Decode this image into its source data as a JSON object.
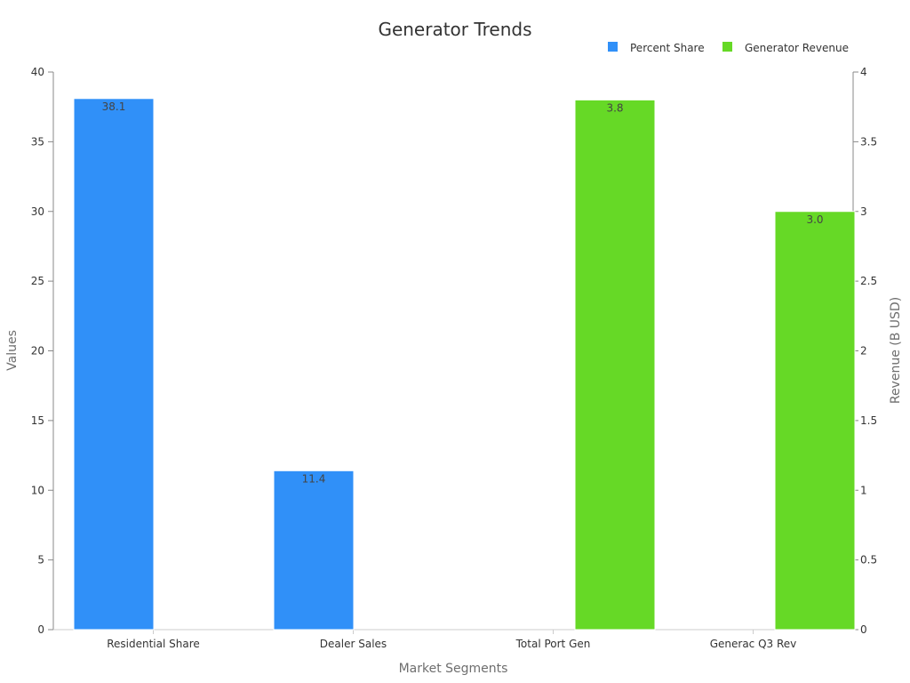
{
  "chart_data": {
    "type": "bar",
    "title": "Generator Trends",
    "xlabel": "Market Segments",
    "ylabel": "Values",
    "y2label": "Revenue (B USD)",
    "categories": [
      "Residential Share",
      "Dealer Sales",
      "Total Port Gen",
      "Generac Q3 Rev"
    ],
    "ylim": [
      0,
      40
    ],
    "y2lim": [
      0,
      4
    ],
    "yticks": [
      "0",
      "5",
      "10",
      "15",
      "20",
      "25",
      "30",
      "35",
      "40"
    ],
    "y2ticks": [
      "0",
      "0.5",
      "1",
      "1.5",
      "2",
      "2.5",
      "3",
      "3.5",
      "4"
    ],
    "legend_position": "top-right",
    "series": [
      {
        "name": "Percent Share",
        "axis": "left",
        "color": "#3090f8",
        "values": [
          38.1,
          11.4,
          null,
          null
        ],
        "labels": [
          "38.1",
          "11.4",
          "",
          ""
        ]
      },
      {
        "name": "Generator Revenue",
        "axis": "right",
        "color": "#66d926",
        "values": [
          null,
          null,
          3.8,
          3.0
        ],
        "labels": [
          "",
          "",
          "3.8",
          "3.0"
        ]
      }
    ]
  }
}
